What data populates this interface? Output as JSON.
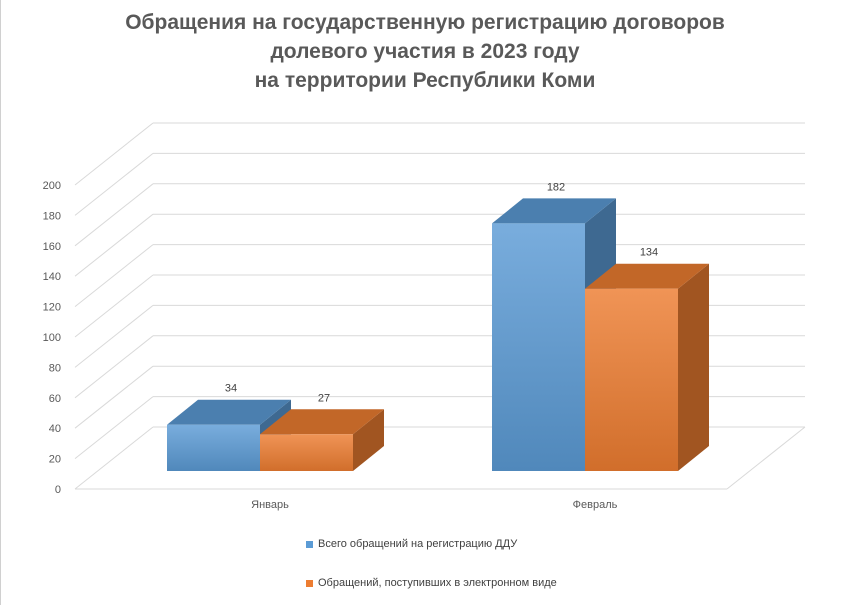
{
  "chart_data": {
    "type": "bar",
    "title_lines": [
      "Обращения на государственную регистрацию договоров",
      "долевого участия в 2023 году",
      "на территории Республики Коми"
    ],
    "categories": [
      "Январь",
      "Февраль"
    ],
    "series": [
      {
        "name": "Всего обращений на регистрацию ДДУ",
        "values": [
          34,
          182
        ],
        "color": "#5b9bd5"
      },
      {
        "name": "Обращений, поступивших в электронном виде",
        "values": [
          27,
          134
        ],
        "color": "#ed7d31"
      }
    ],
    "ylim": [
      0,
      200
    ],
    "y_ticks": [
      "0",
      "20",
      "40",
      "60",
      "80",
      "100",
      "120",
      "140",
      "160",
      "180",
      "200"
    ],
    "data_labels": true,
    "grid": true,
    "legend_position": "bottom",
    "style": "3d-clustered-column"
  }
}
